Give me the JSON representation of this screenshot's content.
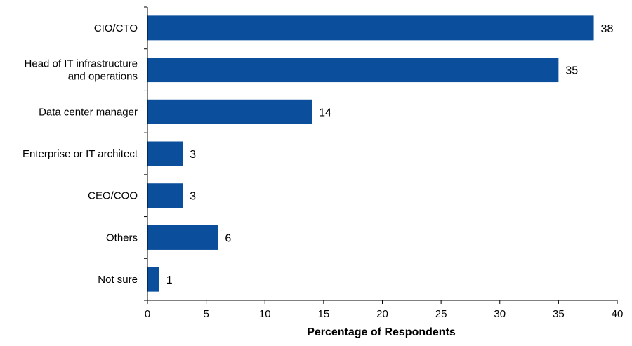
{
  "chart_data": {
    "type": "bar",
    "orientation": "horizontal",
    "categories": [
      [
        "CIO/CTO"
      ],
      [
        "Head of IT infrastructure",
        "and operations"
      ],
      [
        "Data center manager"
      ],
      [
        "Enterprise or IT architect"
      ],
      [
        "CEO/COO"
      ],
      [
        "Others"
      ],
      [
        "Not sure"
      ]
    ],
    "values": [
      38,
      35,
      14,
      3,
      3,
      6,
      1
    ],
    "xlabel": "Percentage of Respondents",
    "xlim": [
      0,
      40
    ],
    "xticks": [
      0,
      5,
      10,
      15,
      20,
      25,
      30,
      35,
      40
    ],
    "data_labels": true,
    "grid": false,
    "bar_color": "#0b4f9c"
  }
}
